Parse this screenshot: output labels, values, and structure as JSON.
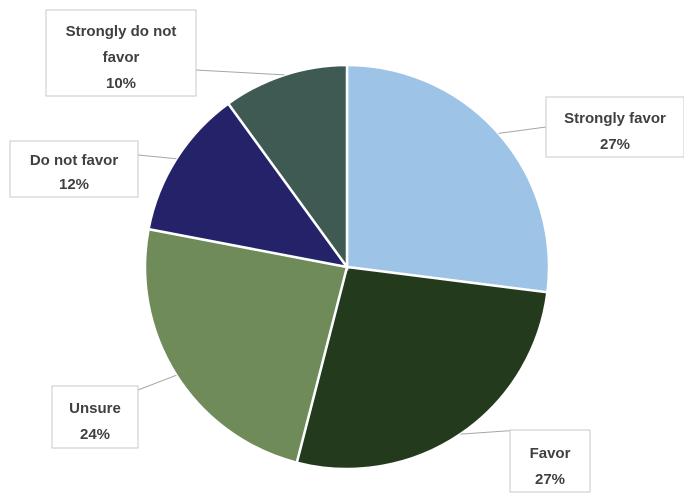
{
  "chart_data": {
    "type": "pie",
    "start_angle_deg": 0,
    "direction": "clockwise",
    "slices": [
      {
        "label": "Strongly favor",
        "pct_text": "27%",
        "value": 27,
        "color": "#9dc3e6"
      },
      {
        "label": "Favor",
        "pct_text": "27%",
        "value": 27,
        "color": "#233a1d"
      },
      {
        "label": "Unsure",
        "pct_text": "24%",
        "value": 24,
        "color": "#6f8b5a"
      },
      {
        "label": "Do not favor",
        "pct_text": "12%",
        "value": 12,
        "color": "#24236a"
      },
      {
        "label": "Strongly do not favor",
        "pct_text": "10%",
        "value": 10,
        "color": "#3f5a52"
      }
    ]
  }
}
